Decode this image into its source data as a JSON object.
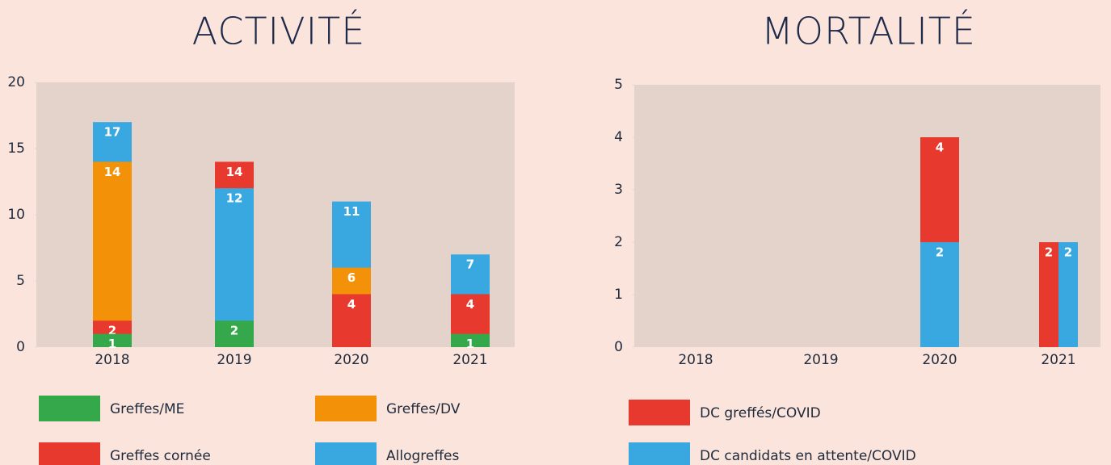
{
  "chart_data": [
    {
      "type": "bar",
      "title": "ACTIVITÉ",
      "categories": [
        "2018",
        "2019",
        "2020",
        "2021"
      ],
      "series": [
        {
          "name": "Greffes/ME",
          "color": "#34a84a",
          "values": [
            1,
            2,
            null,
            1
          ]
        },
        {
          "name": "Greffes/DV",
          "color": "#f39208",
          "values": [
            14,
            null,
            6,
            null
          ]
        },
        {
          "name": "Greffes cornée",
          "color": "#e8392e",
          "values": [
            2,
            14,
            4,
            4
          ]
        },
        {
          "name": "Allogreffes",
          "color": "#3aa8e0",
          "values": [
            17,
            12,
            11,
            7
          ]
        }
      ],
      "ylim": [
        0,
        20
      ],
      "yticks": [
        0,
        5,
        10,
        15,
        20
      ]
    },
    {
      "type": "bar",
      "title": "MORTALITÉ",
      "categories": [
        "2018",
        "2019",
        "2020",
        "2021"
      ],
      "series": [
        {
          "name": "DC greffés/COVID",
          "color": "#e8392e",
          "values": [
            null,
            null,
            4,
            2
          ]
        },
        {
          "name": "DC candidats en attente/COVID",
          "color": "#3aa8e0",
          "values": [
            null,
            null,
            2,
            2
          ]
        }
      ],
      "ylim": [
        0,
        5
      ],
      "yticks": [
        0,
        1,
        2,
        3,
        4,
        5
      ]
    }
  ]
}
